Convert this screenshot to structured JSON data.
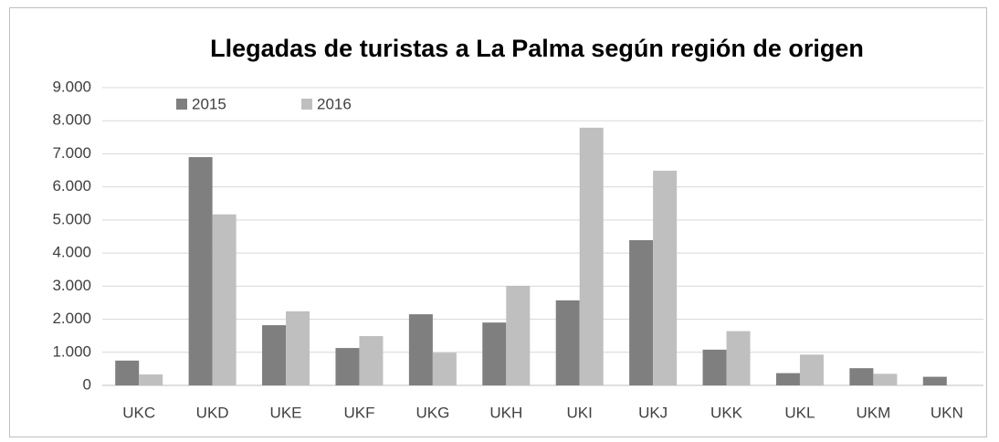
{
  "chart_data": {
    "type": "bar",
    "title": "Llegadas de turistas a La Palma según región de origen",
    "categories": [
      "UKC",
      "UKD",
      "UKE",
      "UKF",
      "UKG",
      "UKH",
      "UKI",
      "UKJ",
      "UKK",
      "UKL",
      "UKM",
      "UKN"
    ],
    "series": [
      {
        "name": "2015",
        "color": "#7f7f7f",
        "values": [
          750,
          6900,
          1820,
          1130,
          2150,
          1900,
          2570,
          4390,
          1080,
          370,
          520,
          260
        ]
      },
      {
        "name": "2016",
        "color": "#bfbfbf",
        "values": [
          330,
          5170,
          2240,
          1490,
          990,
          3010,
          7790,
          6490,
          1640,
          930,
          350,
          0
        ]
      }
    ],
    "ylim": [
      0,
      9000
    ],
    "yticks": [
      0,
      {
        "value": 1000,
        "label": "1.000"
      },
      {
        "value": 2000,
        "label": "2.000"
      },
      {
        "value": 3000,
        "label": "3.000"
      },
      {
        "value": 4000,
        "label": "4.000"
      },
      {
        "value": 5000,
        "label": "5.000"
      },
      {
        "value": 6000,
        "label": "6.000"
      },
      {
        "value": 7000,
        "label": "7.000"
      },
      {
        "value": 8000,
        "label": "8.000"
      },
      {
        "value": 9000,
        "label": "9.000"
      }
    ],
    "grid": true,
    "legend": "top-left"
  }
}
